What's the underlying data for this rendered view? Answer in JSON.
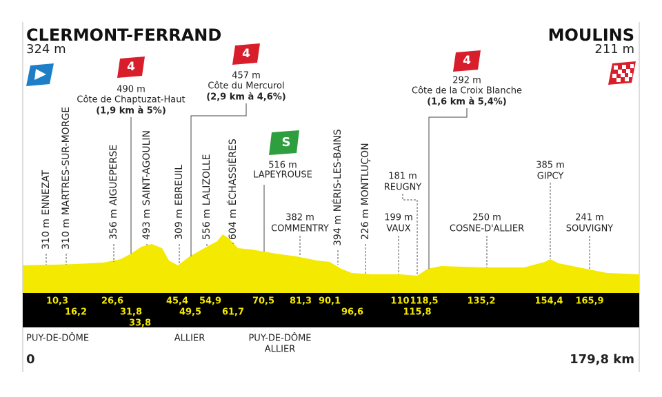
{
  "start": {
    "name": "CLERMONT-FERRAND",
    "elevation": "324 m"
  },
  "finish": {
    "name": "MOULINS",
    "elevation": "211 m"
  },
  "climbs": [
    {
      "category": "4",
      "elevation": "490 m",
      "name": "Côte de Chaptuzat-Haut",
      "details": "(1,9 km à 5%)"
    },
    {
      "category": "4",
      "elevation": "457 m",
      "name": "Côte du Mercurol",
      "details": "(2,9 km à 4,6%)"
    },
    {
      "category": "4",
      "elevation": "292 m",
      "name": "Côte de la Croix Blanche",
      "details": "(1,6 km à 5,4%)"
    }
  ],
  "sprint": {
    "icon": "S",
    "elevation": "516 m",
    "name": "LAPEYROUSE"
  },
  "vertical_waypoints": [
    {
      "elevation": "310 m",
      "name": "ENNEZAT"
    },
    {
      "elevation": "310 m",
      "name": "MARTRES-SUR-MORGE"
    },
    {
      "elevation": "356 m",
      "name": "AIGUEPERSE"
    },
    {
      "elevation": "493 m",
      "name": "SAINT-AGOULIN"
    },
    {
      "elevation": "309 m",
      "name": "EBREUIL"
    },
    {
      "elevation": "556 m",
      "name": "LALIZOLLE"
    },
    {
      "elevation": "604 m",
      "name": "ÉCHASSIÈRES"
    },
    {
      "elevation": "394 m",
      "name": "NÉRIS-LES-BAINS"
    },
    {
      "elevation": "226 m",
      "name": "MONTLUÇON"
    }
  ],
  "waypoints": [
    {
      "elevation": "382 m",
      "name": "COMMENTRY"
    },
    {
      "elevation": "199 m",
      "name": "VAUX"
    },
    {
      "elevation": "181 m",
      "name": "REUGNY"
    },
    {
      "elevation": "250 m",
      "name": "COSNE-D'ALLIER"
    },
    {
      "elevation": "385 m",
      "name": "GIPCY"
    },
    {
      "elevation": "241 m",
      "name": "SOUVIGNY"
    }
  ],
  "km_markers": [
    "10,3",
    "16,2",
    "26,6",
    "31,8",
    "33,8",
    "45,4",
    "49,5",
    "54,9",
    "61,7",
    "70,5",
    "81,3",
    "90,1",
    "96,6",
    "110",
    "115,8",
    "118,5",
    "135,2",
    "154,4",
    "165,9"
  ],
  "regions": [
    "PUY-DE-DÔME",
    "ALLIER",
    "PUY-DE-DÔME",
    "ALLIER"
  ],
  "distance": {
    "start": "0",
    "end": "179,8 km"
  }
}
